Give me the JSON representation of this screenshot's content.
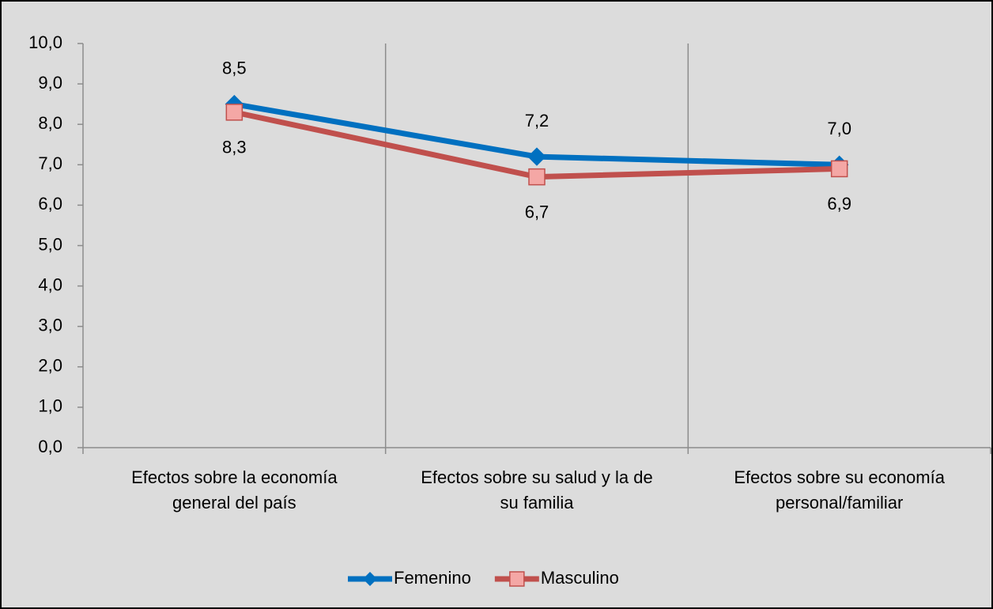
{
  "chart_data": {
    "type": "line",
    "categories": [
      "Efectos sobre la economía general del país",
      "Efectos sobre su salud y la de su familia",
      "Efectos sobre su economía personal/familiar"
    ],
    "series": [
      {
        "name": "Femenino",
        "color": "#0070c0",
        "values": [
          8.5,
          7.2,
          7.0
        ],
        "value_labels": [
          "8,5",
          "7,2",
          "7,0"
        ]
      },
      {
        "name": "Masculino",
        "color": "#c0504d",
        "values": [
          8.3,
          6.7,
          6.9
        ],
        "value_labels": [
          "8,3",
          "6,7",
          "6,9"
        ]
      }
    ],
    "ylim": [
      0,
      10
    ],
    "yticks": [
      {
        "value": 0,
        "label": "0,0"
      },
      {
        "value": 1,
        "label": "1,0"
      },
      {
        "value": 2,
        "label": "2,0"
      },
      {
        "value": 3,
        "label": "3,0"
      },
      {
        "value": 4,
        "label": "4,0"
      },
      {
        "value": 5,
        "label": "5,0"
      },
      {
        "value": 6,
        "label": "6,0"
      },
      {
        "value": 7,
        "label": "7,0"
      },
      {
        "value": 8,
        "label": "8,0"
      },
      {
        "value": 9,
        "label": "9,0"
      },
      {
        "value": 10,
        "label": "10,0"
      }
    ],
    "grid": true,
    "legend": "bottom"
  }
}
